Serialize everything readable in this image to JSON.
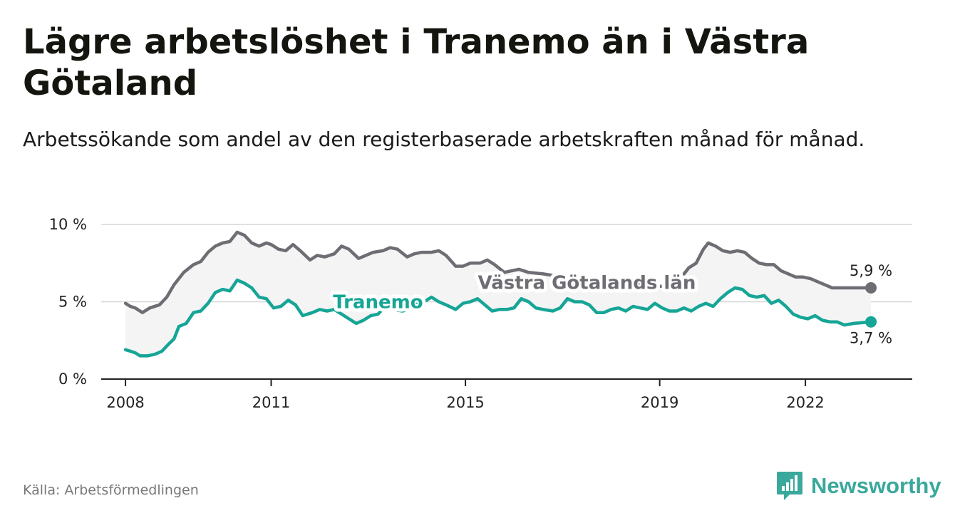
{
  "header": {
    "title": "Lägre arbetslöshet i Tranemo än i Västra Götaland",
    "subtitle": "Arbetssökande som andel av den registerbaserade arbetskraften månad för månad."
  },
  "footer": {
    "source": "Källa: Arbetsförmedlingen",
    "brand": "Newsworthy"
  },
  "colors": {
    "vastra": "#6e6d73",
    "tranemo": "#16a596",
    "band": "#f4f4f5",
    "grid": "#d6d6d6",
    "axis": "#222222",
    "brand": "#3aa89c"
  },
  "chart_data": {
    "type": "line",
    "title": "Lägre arbetslöshet i Tranemo än i Västra Götaland",
    "xlabel": "",
    "ylabel": "",
    "xlim": [
      2007.5,
      2024.2
    ],
    "ylim": [
      0,
      10
    ],
    "grid": true,
    "y_ticks": [
      {
        "value": 0,
        "label": "0 %"
      },
      {
        "value": 5,
        "label": "5 %"
      },
      {
        "value": 10,
        "label": "10 %"
      }
    ],
    "x_ticks": [
      {
        "value": 2008,
        "label": "2008"
      },
      {
        "value": 2011,
        "label": "2011"
      },
      {
        "value": 2015,
        "label": "2015"
      },
      {
        "value": 2019,
        "label": "2019"
      },
      {
        "value": 2022,
        "label": "2022"
      }
    ],
    "series": [
      {
        "name": "Västra Götalands län",
        "label": "Västra Götalands län",
        "end_label": "5,9 %",
        "points": [
          [
            2008.0,
            4.9
          ],
          [
            2008.1,
            4.7
          ],
          [
            2008.2,
            4.6
          ],
          [
            2008.35,
            4.3
          ],
          [
            2008.5,
            4.6
          ],
          [
            2008.7,
            4.8
          ],
          [
            2008.85,
            5.3
          ],
          [
            2009.0,
            6.1
          ],
          [
            2009.2,
            6.9
          ],
          [
            2009.4,
            7.4
          ],
          [
            2009.55,
            7.6
          ],
          [
            2009.7,
            8.2
          ],
          [
            2009.85,
            8.6
          ],
          [
            2010.0,
            8.8
          ],
          [
            2010.15,
            8.9
          ],
          [
            2010.3,
            9.5
          ],
          [
            2010.45,
            9.3
          ],
          [
            2010.6,
            8.8
          ],
          [
            2010.75,
            8.6
          ],
          [
            2010.9,
            8.8
          ],
          [
            2011.0,
            8.7
          ],
          [
            2011.15,
            8.4
          ],
          [
            2011.3,
            8.3
          ],
          [
            2011.45,
            8.7
          ],
          [
            2011.6,
            8.3
          ],
          [
            2011.8,
            7.7
          ],
          [
            2011.95,
            8.0
          ],
          [
            2012.1,
            7.9
          ],
          [
            2012.3,
            8.1
          ],
          [
            2012.45,
            8.6
          ],
          [
            2012.6,
            8.4
          ],
          [
            2012.8,
            7.8
          ],
          [
            2012.95,
            8.0
          ],
          [
            2013.1,
            8.2
          ],
          [
            2013.3,
            8.3
          ],
          [
            2013.45,
            8.5
          ],
          [
            2013.6,
            8.4
          ],
          [
            2013.8,
            7.9
          ],
          [
            2013.95,
            8.1
          ],
          [
            2014.1,
            8.2
          ],
          [
            2014.3,
            8.2
          ],
          [
            2014.45,
            8.3
          ],
          [
            2014.6,
            8.0
          ],
          [
            2014.8,
            7.3
          ],
          [
            2014.95,
            7.3
          ],
          [
            2015.1,
            7.5
          ],
          [
            2015.3,
            7.5
          ],
          [
            2015.45,
            7.7
          ],
          [
            2015.6,
            7.4
          ],
          [
            2015.8,
            6.9
          ],
          [
            2015.95,
            7.0
          ],
          [
            2016.1,
            7.1
          ],
          [
            2016.3,
            6.9
          ],
          [
            2016.6,
            6.8
          ],
          [
            2017.0,
            6.6
          ],
          [
            2017.5,
            6.4
          ],
          [
            2018.0,
            6.3
          ],
          [
            2018.5,
            6.1
          ],
          [
            2019.0,
            6.0
          ],
          [
            2019.2,
            6.0
          ],
          [
            2019.45,
            6.6
          ],
          [
            2019.6,
            7.2
          ],
          [
            2019.75,
            7.5
          ],
          [
            2019.9,
            8.4
          ],
          [
            2020.0,
            8.8
          ],
          [
            2020.15,
            8.6
          ],
          [
            2020.3,
            8.3
          ],
          [
            2020.45,
            8.2
          ],
          [
            2020.6,
            8.3
          ],
          [
            2020.75,
            8.2
          ],
          [
            2020.9,
            7.8
          ],
          [
            2021.05,
            7.5
          ],
          [
            2021.2,
            7.4
          ],
          [
            2021.35,
            7.4
          ],
          [
            2021.5,
            7.0
          ],
          [
            2021.65,
            6.8
          ],
          [
            2021.8,
            6.6
          ],
          [
            2021.95,
            6.6
          ],
          [
            2022.1,
            6.5
          ],
          [
            2022.25,
            6.3
          ],
          [
            2022.4,
            6.1
          ],
          [
            2022.55,
            5.9
          ],
          [
            2022.8,
            5.9
          ],
          [
            2023.1,
            5.9
          ],
          [
            2023.35,
            5.9
          ]
        ]
      },
      {
        "name": "Tranemo",
        "label": "Tranemo",
        "end_label": "3,7 %",
        "points": [
          [
            2008.0,
            1.9
          ],
          [
            2008.1,
            1.8
          ],
          [
            2008.2,
            1.7
          ],
          [
            2008.3,
            1.5
          ],
          [
            2008.45,
            1.5
          ],
          [
            2008.6,
            1.6
          ],
          [
            2008.75,
            1.8
          ],
          [
            2008.9,
            2.3
          ],
          [
            2009.0,
            2.6
          ],
          [
            2009.1,
            3.4
          ],
          [
            2009.25,
            3.6
          ],
          [
            2009.4,
            4.3
          ],
          [
            2009.55,
            4.4
          ],
          [
            2009.7,
            4.9
          ],
          [
            2009.85,
            5.6
          ],
          [
            2010.0,
            5.8
          ],
          [
            2010.15,
            5.7
          ],
          [
            2010.3,
            6.4
          ],
          [
            2010.45,
            6.2
          ],
          [
            2010.6,
            5.9
          ],
          [
            2010.75,
            5.3
          ],
          [
            2010.9,
            5.2
          ],
          [
            2011.05,
            4.6
          ],
          [
            2011.2,
            4.7
          ],
          [
            2011.35,
            5.1
          ],
          [
            2011.5,
            4.8
          ],
          [
            2011.65,
            4.1
          ],
          [
            2011.85,
            4.3
          ],
          [
            2012.0,
            4.5
          ],
          [
            2012.15,
            4.4
          ],
          [
            2012.3,
            4.5
          ],
          [
            2012.45,
            4.2
          ],
          [
            2012.6,
            3.9
          ],
          [
            2012.75,
            3.6
          ],
          [
            2012.9,
            3.8
          ],
          [
            2013.05,
            4.1
          ],
          [
            2013.2,
            4.2
          ],
          [
            2013.35,
            4.7
          ],
          [
            2013.5,
            4.5
          ],
          [
            2013.7,
            4.4
          ],
          [
            2013.85,
            4.5
          ],
          [
            2014.0,
            4.9
          ],
          [
            2014.15,
            5.0
          ],
          [
            2014.3,
            5.3
          ],
          [
            2014.45,
            5.0
          ],
          [
            2014.6,
            4.8
          ],
          [
            2014.8,
            4.5
          ],
          [
            2014.95,
            4.9
          ],
          [
            2015.1,
            5.0
          ],
          [
            2015.25,
            5.2
          ],
          [
            2015.4,
            4.8
          ],
          [
            2015.55,
            4.4
          ],
          [
            2015.7,
            4.5
          ],
          [
            2015.85,
            4.5
          ],
          [
            2016.0,
            4.6
          ],
          [
            2016.15,
            5.2
          ],
          [
            2016.3,
            5.0
          ],
          [
            2016.45,
            4.6
          ],
          [
            2016.6,
            4.5
          ],
          [
            2016.8,
            4.4
          ],
          [
            2016.95,
            4.6
          ],
          [
            2017.1,
            5.2
          ],
          [
            2017.25,
            5.0
          ],
          [
            2017.4,
            5.0
          ],
          [
            2017.55,
            4.8
          ],
          [
            2017.7,
            4.3
          ],
          [
            2017.85,
            4.3
          ],
          [
            2018.0,
            4.5
          ],
          [
            2018.15,
            4.6
          ],
          [
            2018.3,
            4.4
          ],
          [
            2018.45,
            4.7
          ],
          [
            2018.6,
            4.6
          ],
          [
            2018.75,
            4.5
          ],
          [
            2018.9,
            4.9
          ],
          [
            2019.05,
            4.6
          ],
          [
            2019.2,
            4.4
          ],
          [
            2019.35,
            4.4
          ],
          [
            2019.5,
            4.6
          ],
          [
            2019.65,
            4.4
          ],
          [
            2019.8,
            4.7
          ],
          [
            2019.95,
            4.9
          ],
          [
            2020.1,
            4.7
          ],
          [
            2020.25,
            5.2
          ],
          [
            2020.4,
            5.6
          ],
          [
            2020.55,
            5.9
          ],
          [
            2020.7,
            5.8
          ],
          [
            2020.85,
            5.4
          ],
          [
            2021.0,
            5.3
          ],
          [
            2021.15,
            5.4
          ],
          [
            2021.3,
            4.9
          ],
          [
            2021.45,
            5.1
          ],
          [
            2021.6,
            4.7
          ],
          [
            2021.75,
            4.2
          ],
          [
            2021.9,
            4.0
          ],
          [
            2022.05,
            3.9
          ],
          [
            2022.2,
            4.1
          ],
          [
            2022.35,
            3.8
          ],
          [
            2022.5,
            3.7
          ],
          [
            2022.65,
            3.7
          ],
          [
            2022.8,
            3.5
          ],
          [
            2023.0,
            3.6
          ],
          [
            2023.35,
            3.7
          ]
        ]
      }
    ]
  }
}
